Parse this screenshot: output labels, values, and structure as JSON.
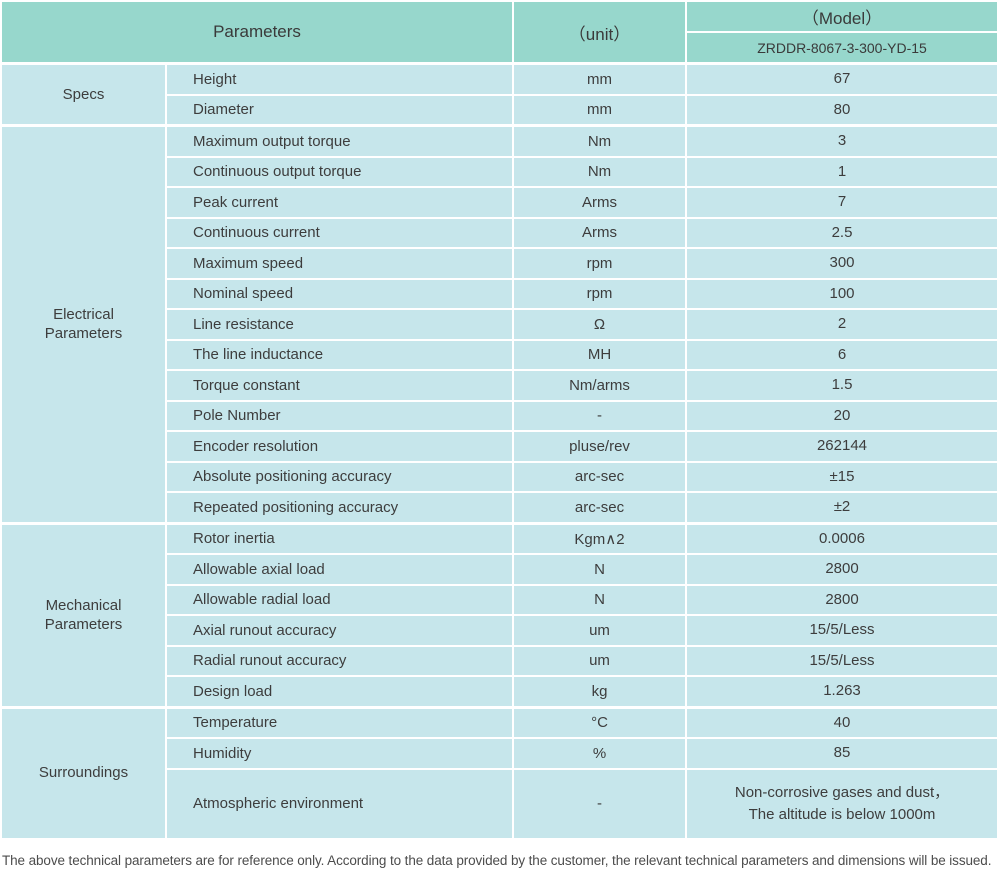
{
  "colors": {
    "header_bg": "#97d7cc",
    "row_bg": "#c6e6eb",
    "divider": "#ffffff",
    "text": "#3d3d3d"
  },
  "table": {
    "header": {
      "parameters_label": "Parameters",
      "unit_label": "（unit）",
      "model_label": "（Model）",
      "model_value": "ZRDDR-8067-3-300-YD-15"
    },
    "sections": [
      {
        "name": "Specs",
        "rows": [
          {
            "param": "Height",
            "unit": "mm",
            "value": "67"
          },
          {
            "param": "Diameter",
            "unit": "mm",
            "value": "80"
          }
        ]
      },
      {
        "name": "Electrical\nParameters",
        "rows": [
          {
            "param": "Maximum output torque",
            "unit": "Nm",
            "value": "3"
          },
          {
            "param": "Continuous output torque",
            "unit": "Nm",
            "value": "1"
          },
          {
            "param": "Peak current",
            "unit": "Arms",
            "value": "7"
          },
          {
            "param": "Continuous current",
            "unit": "Arms",
            "value": "2.5"
          },
          {
            "param": "Maximum speed",
            "unit": "rpm",
            "value": "300"
          },
          {
            "param": "Nominal speed",
            "unit": "rpm",
            "value": "100"
          },
          {
            "param": "Line resistance",
            "unit": "Ω",
            "value": "2"
          },
          {
            "param": "The line inductance",
            "unit": "MH",
            "value": "6"
          },
          {
            "param": "Torque constant",
            "unit": "Nm/arms",
            "value": "1.5"
          },
          {
            "param": "Pole Number",
            "unit": "-",
            "value": "20"
          },
          {
            "param": "Encoder resolution",
            "unit": "pluse/rev",
            "value": "262144"
          },
          {
            "param": "Absolute positioning accuracy",
            "unit": "arc-sec",
            "value": "±15"
          },
          {
            "param": "Repeated positioning accuracy",
            "unit": "arc-sec",
            "value": "±2"
          }
        ]
      },
      {
        "name": "Mechanical\nParameters",
        "rows": [
          {
            "param": "Rotor inertia",
            "unit": "Kgm∧2",
            "value": "0.0006"
          },
          {
            "param": "Allowable axial load",
            "unit": "N",
            "value": "2800"
          },
          {
            "param": "Allowable radial load",
            "unit": "N",
            "value": "2800"
          },
          {
            "param": "Axial runout accuracy",
            "unit": "um",
            "value": "15/5/Less"
          },
          {
            "param": "Radial runout accuracy",
            "unit": "um",
            "value": "15/5/Less"
          },
          {
            "param": "Design load",
            "unit": "kg",
            "value": "1.263"
          }
        ]
      },
      {
        "name": "Surroundings",
        "rows": [
          {
            "param": "Temperature",
            "unit": "°C",
            "value": "40"
          },
          {
            "param": "Humidity",
            "unit": "%",
            "value": "85"
          },
          {
            "param": "Atmospheric environment",
            "unit": "-",
            "value": "Non-corrosive gases and dust，\nThe altitude is below 1000m",
            "tall": true
          }
        ]
      }
    ],
    "footnote": "The above technical parameters are for reference only. According to the data provided by the customer, the relevant technical parameters and dimensions will be issued."
  }
}
